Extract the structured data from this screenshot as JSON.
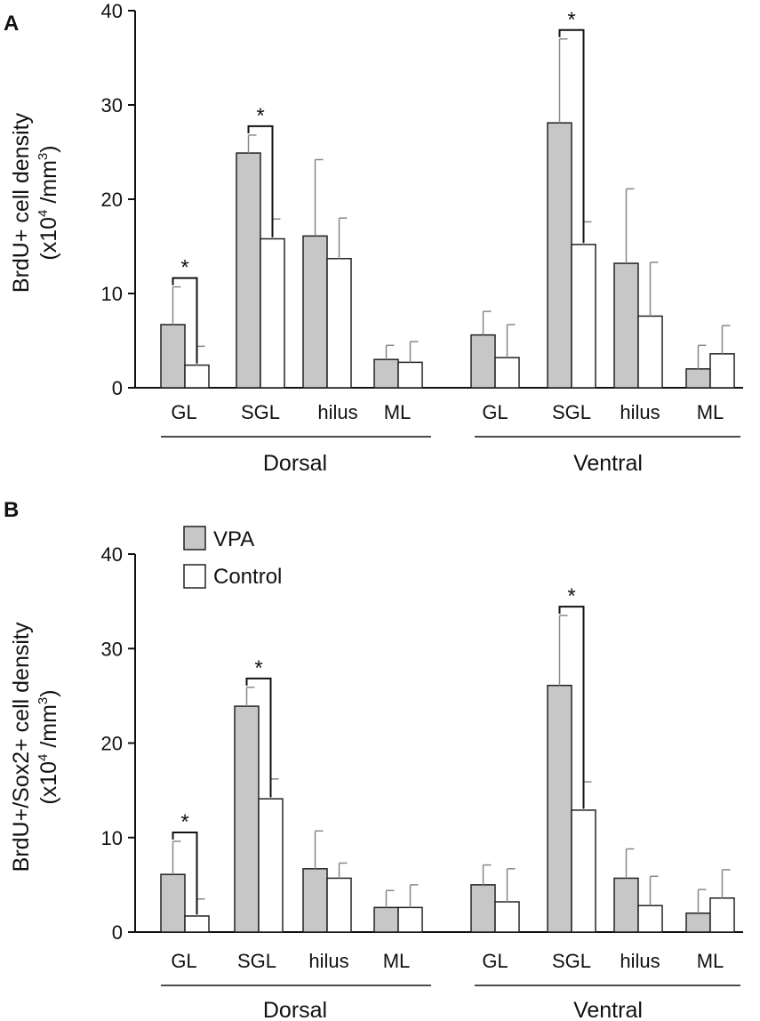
{
  "colors": {
    "vpa": "#c7c7c7",
    "control": "#ffffff",
    "stroke": "#222222",
    "error": "#888888"
  },
  "legend": [
    {
      "label": "VPA",
      "color": "#c7c7c7"
    },
    {
      "label": "Control",
      "color": "#ffffff"
    }
  ],
  "chart_data": [
    {
      "panel": "A",
      "type": "bar",
      "ylabel_line1": "BrdU+ cell density",
      "ylabel_line2_prefix": "(x10",
      "ylabel_line2_exp": "4",
      "ylabel_line2_mid": " /mm",
      "ylabel_line2_exp2": "3",
      "ylabel_line2_suffix": ")",
      "ylim": [
        0,
        40
      ],
      "yticks": [
        0,
        10,
        20,
        30,
        40
      ],
      "ytick_labels": [
        "0",
        "10",
        "20",
        "30",
        "40"
      ],
      "groups": [
        "Dorsal",
        "Ventral"
      ],
      "categories": [
        "GL",
        "SGL",
        "hilus",
        "ML",
        "GL",
        "SGL",
        "hilus",
        "ML"
      ],
      "series": [
        {
          "name": "VPA",
          "values": [
            6.7,
            24.9,
            16.1,
            3.0,
            5.6,
            28.1,
            13.2,
            2.0
          ],
          "errors": [
            4.0,
            1.9,
            8.1,
            1.5,
            2.5,
            8.9,
            7.9,
            2.5
          ]
        },
        {
          "name": "Control",
          "values": [
            2.4,
            15.8,
            13.7,
            2.7,
            3.2,
            15.2,
            7.6,
            3.6
          ],
          "errors": [
            2.0,
            2.1,
            4.3,
            2.2,
            3.5,
            2.4,
            5.7,
            3.0
          ]
        }
      ],
      "significance": [
        {
          "category_index": 0,
          "label": "*"
        },
        {
          "category_index": 1,
          "label": "*"
        },
        {
          "category_index": 5,
          "label": "*"
        }
      ]
    },
    {
      "panel": "B",
      "type": "bar",
      "ylabel_line1": "BrdU+/Sox2+ cell density",
      "ylabel_line2_prefix": "(x10",
      "ylabel_line2_exp": "4",
      "ylabel_line2_mid": " /mm",
      "ylabel_line2_exp2": "3",
      "ylabel_line2_suffix": ")",
      "ylim": [
        0,
        40
      ],
      "yticks": [
        0,
        10,
        20,
        30,
        40
      ],
      "ytick_labels": [
        "0",
        "10",
        "20",
        "30",
        "40"
      ],
      "groups": [
        "Dorsal",
        "Ventral"
      ],
      "categories": [
        "GL",
        "SGL",
        "hilus",
        "ML",
        "GL",
        "SGL",
        "hilus",
        "ML"
      ],
      "series": [
        {
          "name": "VPA",
          "values": [
            6.1,
            23.9,
            6.7,
            2.6,
            5.0,
            26.1,
            5.7,
            2.0
          ],
          "errors": [
            3.5,
            2.0,
            4.0,
            1.8,
            2.1,
            7.4,
            3.1,
            2.5
          ]
        },
        {
          "name": "Control",
          "values": [
            1.7,
            14.1,
            5.7,
            2.6,
            3.2,
            12.9,
            2.8,
            3.6
          ],
          "errors": [
            1.8,
            2.1,
            1.6,
            2.4,
            3.5,
            3.0,
            3.1,
            3.0
          ]
        }
      ],
      "significance": [
        {
          "category_index": 0,
          "label": "*"
        },
        {
          "category_index": 1,
          "label": "*"
        },
        {
          "category_index": 5,
          "label": "*"
        }
      ]
    }
  ]
}
